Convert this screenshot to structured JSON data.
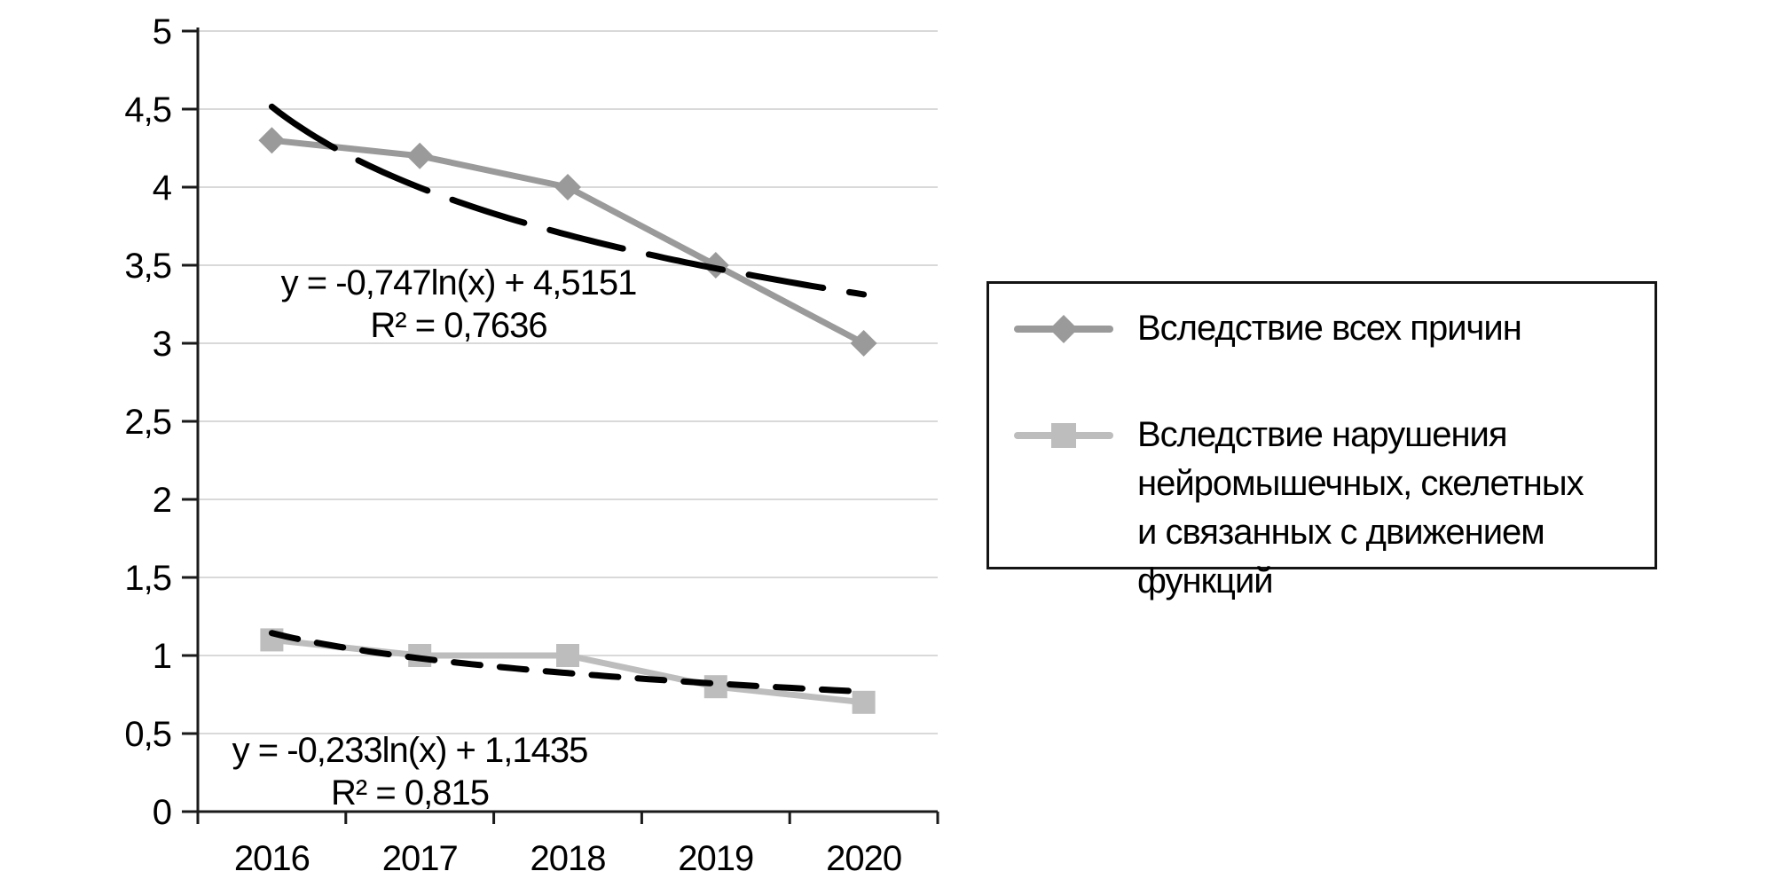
{
  "chart_data": {
    "type": "line",
    "categories": [
      "2016",
      "2017",
      "2018",
      "2019",
      "2020"
    ],
    "series": [
      {
        "name": "Вследствие всех причин",
        "values": [
          4.3,
          4.2,
          4.0,
          3.5,
          3.0
        ],
        "color": "#9a9a9a",
        "marker": "diamond"
      },
      {
        "name": "Вследствие нарушения нейромышечных, скелетных и связанных с движением функций",
        "values": [
          1.1,
          1.0,
          1.0,
          0.8,
          0.7
        ],
        "color": "#bdbdbd",
        "marker": "square"
      }
    ],
    "trendlines": [
      {
        "series": 0,
        "type": "logarithmic",
        "a": -0.747,
        "b": 4.5151,
        "r2": 0.7636,
        "dash": "long"
      },
      {
        "series": 1,
        "type": "logarithmic",
        "a": -0.233,
        "b": 1.1435,
        "r2": 0.815,
        "dash": "short"
      }
    ],
    "y_axis": {
      "min": 0,
      "max": 5,
      "tick_step": 0.5,
      "tick_labels": [
        "0",
        "0,5",
        "1",
        "1,5",
        "2",
        "2,5",
        "3",
        "3,5",
        "4",
        "4,5",
        "5"
      ]
    },
    "x_axis": {
      "tick_labels": [
        "2016",
        "2017",
        "2018",
        "2019",
        "2020"
      ]
    },
    "grid": true,
    "legend_position": "right",
    "colors": {
      "grid": "#d9d9d9",
      "axis": "#1a1a1a",
      "trend": "#000000",
      "series1": "#9a9a9a",
      "series2": "#bdbdbd"
    }
  },
  "equations": {
    "trend1": {
      "line1": "y = -0,747ln(x) + 4,5151",
      "line2": "R² = 0,7636"
    },
    "trend2": {
      "line1": "y = -0,233ln(x) + 1,1435",
      "line2": "R² = 0,815"
    }
  },
  "legend": {
    "items": [
      {
        "lines": [
          "Вследствие всех причин"
        ]
      },
      {
        "lines": [
          "Вследствие нарушения",
          "нейромышечных, скелетных",
          "и связанных с движением функций"
        ]
      }
    ]
  }
}
